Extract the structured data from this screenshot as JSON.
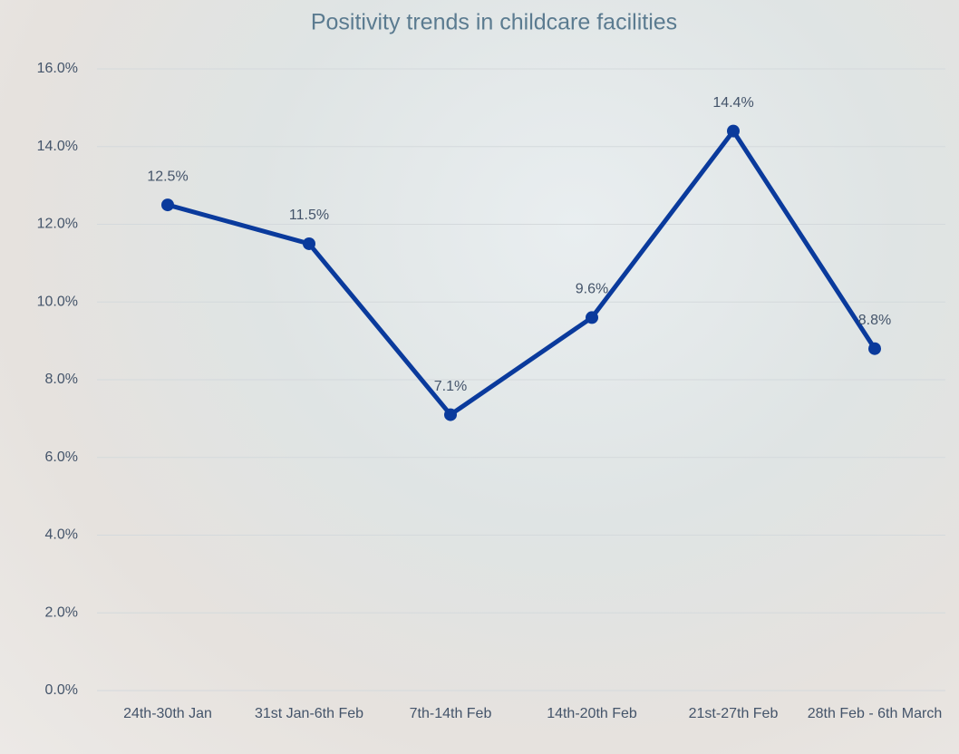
{
  "chart_data": {
    "type": "line",
    "title": "Positivity trends in childcare facilities",
    "categories": [
      "24th-30th Jan",
      "31st Jan-6th Feb",
      "7th-14th Feb",
      "14th-20th Feb",
      "21st-27th Feb",
      "28th Feb - 6th March"
    ],
    "series": [
      {
        "name": "Positivity",
        "color": "#0a3a9c",
        "values": [
          12.5,
          11.5,
          7.1,
          9.6,
          14.4,
          8.8
        ],
        "value_labels": [
          "12.5%",
          "11.5%",
          "7.1%",
          "9.6%",
          "14.4%",
          "8.8%"
        ]
      }
    ],
    "ylim": [
      0,
      16
    ],
    "yticks": [
      {
        "value": 0,
        "label": "0.0%"
      },
      {
        "value": 2,
        "label": "2.0%"
      },
      {
        "value": 4,
        "label": "4.0%"
      },
      {
        "value": 6,
        "label": "6.0%"
      },
      {
        "value": 8,
        "label": "8.0%"
      },
      {
        "value": 10,
        "label": "10.0%"
      },
      {
        "value": 12,
        "label": "12.0%"
      },
      {
        "value": 14,
        "label": "14.0%"
      },
      {
        "value": 16,
        "label": "16.0%"
      }
    ],
    "grid": true
  }
}
